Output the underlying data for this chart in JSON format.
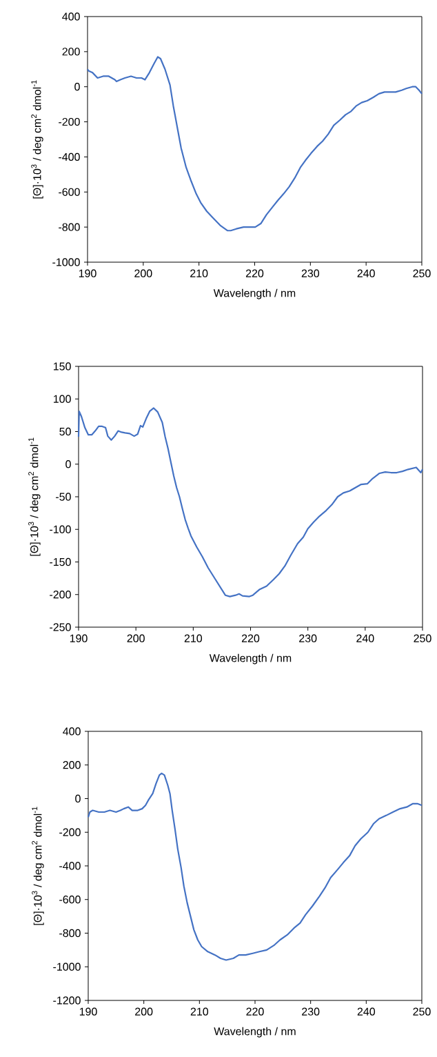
{
  "chart_data": [
    {
      "type": "line",
      "xlabel": "Wavelength / nm",
      "ylabel": "[Θ]·10$^{3}$ / deg cm$^{2}$ dmol$^{-1}$",
      "xlim": [
        190,
        250
      ],
      "ylim": [
        -1000,
        400
      ],
      "xticks": [
        190,
        200,
        210,
        220,
        230,
        240,
        250
      ],
      "yticks": [
        -1000,
        -800,
        -600,
        -400,
        -200,
        0,
        200,
        400
      ],
      "marker": "none",
      "line_style": "solid",
      "series": [
        {
          "color": "#4472c4",
          "x": [
            190,
            190.2,
            190.9,
            191.8,
            192.8,
            193.8,
            194.9,
            195.2,
            195.9,
            196.7,
            197.8,
            198.8,
            199.7,
            200.3,
            201.1,
            201.9,
            202.6,
            203.1,
            203.9,
            204.8,
            205.4,
            206.1,
            206.8,
            207.7,
            208.5,
            209.5,
            210.3,
            211.4,
            212.6,
            213.8,
            215.1,
            215.7,
            216.7,
            218.0,
            219.0,
            220.1,
            221.1,
            222.1,
            223.1,
            224.1,
            225.2,
            226.2,
            227.2,
            228.2,
            229.1,
            230.1,
            231.2,
            232.2,
            233.2,
            234.2,
            235.3,
            236.3,
            237.3,
            238.2,
            239.2,
            240.2,
            241.3,
            242.3,
            243.3,
            244.4,
            245.3,
            246.4,
            247.2,
            248.3,
            248.9,
            249.5,
            250
          ],
          "values": [
            100,
            90,
            80,
            50,
            60,
            60,
            40,
            30,
            40,
            50,
            60,
            50,
            50,
            40,
            80,
            130,
            170,
            160,
            100,
            10,
            -110,
            -230,
            -350,
            -460,
            -530,
            -610,
            -660,
            -710,
            -750,
            -790,
            -820,
            -820,
            -810,
            -800,
            -800,
            -800,
            -780,
            -730,
            -690,
            -650,
            -610,
            -570,
            -520,
            -460,
            -420,
            -380,
            -340,
            -310,
            -270,
            -220,
            -190,
            -160,
            -140,
            -110,
            -90,
            -80,
            -60,
            -40,
            -30,
            -30,
            -30,
            -20,
            -10,
            0,
            0,
            -20,
            -40
          ]
        }
      ]
    },
    {
      "type": "line",
      "xlabel": "Wavelength / nm",
      "ylabel": "[Θ]·10$^{3}$ / deg cm$^{2}$ dmol$^{-1}$",
      "xlim": [
        190,
        250
      ],
      "ylim": [
        -250,
        150
      ],
      "xticks": [
        190,
        200,
        210,
        220,
        230,
        240,
        250
      ],
      "yticks": [
        -250,
        -200,
        -150,
        -100,
        -50,
        0,
        50,
        100,
        150
      ],
      "marker": "none",
      "line_style": "solid",
      "series": [
        {
          "color": "#4472c4",
          "x": [
            190,
            190.1,
            190.5,
            191.1,
            191.7,
            192.3,
            192.9,
            193.5,
            194.1,
            194.7,
            195.1,
            195.7,
            196.3,
            196.9,
            197.5,
            198.1,
            198.9,
            199.7,
            200.3,
            200.8,
            201.2,
            201.8,
            202.4,
            203.1,
            203.8,
            204.6,
            205.1,
            205.6,
            206.1,
            206.6,
            207.1,
            207.6,
            208.1,
            208.6,
            209.1,
            209.6,
            210.6,
            211.6,
            212.6,
            213.6,
            214.6,
            215.6,
            216.4,
            217.4,
            218.0,
            218.6,
            219.8,
            220.4,
            221.6,
            222.8,
            224.0,
            225.0,
            226.0,
            227.0,
            228.2,
            229.2,
            230.0,
            231.0,
            232.0,
            233.2,
            234.2,
            235.2,
            236.2,
            237.3,
            238.3,
            239.3,
            240.4,
            241.3,
            242.5,
            243.5,
            244.5,
            245.5,
            246.5,
            247.5,
            248.9,
            249.7,
            250
          ],
          "values": [
            42,
            81,
            73,
            56,
            45,
            45,
            51,
            58,
            58,
            56,
            43,
            37,
            43,
            51,
            49,
            48,
            47,
            43,
            46,
            59,
            57,
            70,
            81,
            86,
            80,
            64,
            42,
            24,
            3,
            -18,
            -36,
            -50,
            -68,
            -85,
            -98,
            -110,
            -127,
            -142,
            -159,
            -173,
            -187,
            -201,
            -203,
            -201,
            -199,
            -202,
            -203,
            -201,
            -192,
            -187,
            -177,
            -168,
            -156,
            -140,
            -122,
            -112,
            -99,
            -89,
            -80,
            -71,
            -62,
            -50,
            -44,
            -41,
            -36,
            -31,
            -30,
            -22,
            -14,
            -12,
            -13,
            -13,
            -11,
            -8,
            -5,
            -13,
            -8
          ]
        }
      ]
    },
    {
      "type": "line",
      "xlabel": "Wavelength / nm",
      "ylabel": "[Θ]·10$^{3}$ / deg cm$^{2}$ dmol$^{-1}$",
      "xlim": [
        190,
        250
      ],
      "ylim": [
        -1200,
        400
      ],
      "xticks": [
        190,
        200,
        210,
        220,
        230,
        240,
        250
      ],
      "yticks": [
        -1200,
        -1000,
        -800,
        -600,
        -400,
        -200,
        0,
        200,
        400
      ],
      "marker": "none",
      "line_style": "solid",
      "series": [
        {
          "color": "#4472c4",
          "x": [
            190,
            190.3,
            190.8,
            191.9,
            192.9,
            193.9,
            195.0,
            195.8,
            196.4,
            197.2,
            197.9,
            198.9,
            199.7,
            200.3,
            200.8,
            201.6,
            202.2,
            202.8,
            203.2,
            203.7,
            204.3,
            204.7,
            205.1,
            205.6,
            206.1,
            206.7,
            207.2,
            207.8,
            208.4,
            209.0,
            209.7,
            210.4,
            211.5,
            212.8,
            213.8,
            214.8,
            216.1,
            217.1,
            218.3,
            219.6,
            220.8,
            222.1,
            223.5,
            224.5,
            225.8,
            227.0,
            228.1,
            229.1,
            230.3,
            231.6,
            232.6,
            233.6,
            234.9,
            235.9,
            237.0,
            238.0,
            239.0,
            240.3,
            241.3,
            242.3,
            243.6,
            244.8,
            246.1,
            247.3,
            248.4,
            249.2,
            250
          ],
          "values": [
            -110,
            -80,
            -70,
            -80,
            -80,
            -70,
            -80,
            -70,
            -60,
            -50,
            -70,
            -70,
            -60,
            -40,
            -10,
            30,
            90,
            140,
            150,
            140,
            80,
            30,
            -70,
            -180,
            -300,
            -410,
            -520,
            -620,
            -700,
            -780,
            -840,
            -880,
            -910,
            -930,
            -950,
            -960,
            -950,
            -930,
            -930,
            -920,
            -910,
            -900,
            -870,
            -840,
            -810,
            -770,
            -740,
            -690,
            -640,
            -580,
            -530,
            -470,
            -420,
            -380,
            -340,
            -280,
            -240,
            -200,
            -150,
            -120,
            -100,
            -80,
            -60,
            -50,
            -30,
            -30,
            -40
          ]
        }
      ]
    }
  ]
}
